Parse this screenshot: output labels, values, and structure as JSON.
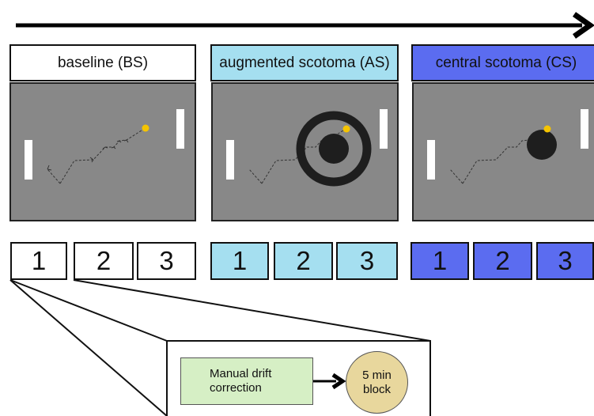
{
  "conditions": [
    {
      "label": "baseline (BS)",
      "color": "#ffffff",
      "blocks": [
        "1",
        "2",
        "3"
      ]
    },
    {
      "label": "augmented scotoma (AS)",
      "color": "#a5dff0",
      "blocks": [
        "1",
        "2",
        "3"
      ]
    },
    {
      "label": "central scotoma (CS)",
      "color": "#5b6cf0",
      "blocks": [
        "1",
        "2",
        "3"
      ]
    }
  ],
  "block_procedure": {
    "step1": "Manual drift correction",
    "step2": "5 min block"
  },
  "colors": {
    "panel_bg": "#888888",
    "ball": "#f5c400",
    "scotoma": "#1e1e1e"
  }
}
